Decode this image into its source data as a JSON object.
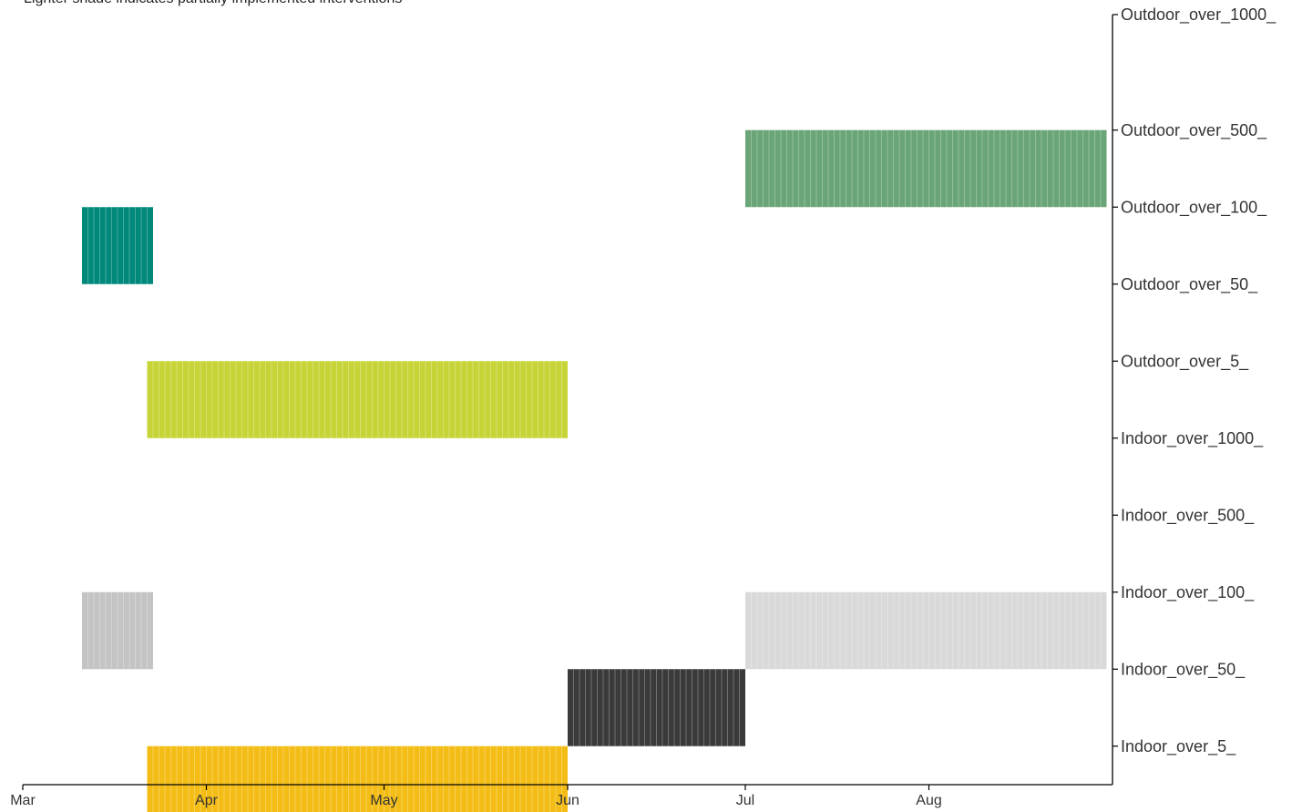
{
  "chart_data": {
    "type": "gantt",
    "subtitle": "Lighter shade indicates partially implemented interventions",
    "x_axis": {
      "range": [
        "2020-03-01",
        "2020-09-01"
      ],
      "ticks": [
        {
          "date": "2020-03-01",
          "label": "Mar"
        },
        {
          "date": "2020-04-01",
          "label": "Apr"
        },
        {
          "date": "2020-05-01",
          "label": "May"
        },
        {
          "date": "2020-06-01",
          "label": "Jun"
        },
        {
          "date": "2020-07-01",
          "label": "Jul"
        },
        {
          "date": "2020-08-01",
          "label": "Aug"
        }
      ]
    },
    "y_position": "right",
    "categories": [
      "Outdoor_over_1000_",
      "Outdoor_over_500_",
      "Outdoor_over_100_",
      "Outdoor_over_50_",
      "Outdoor_over_5_",
      "Indoor_over_1000_",
      "Indoor_over_500_",
      "Indoor_over_100_",
      "Indoor_over_50_",
      "Indoor_over_5_"
    ],
    "bars": [
      {
        "category": "Outdoor_over_500_",
        "start": "2020-07-01",
        "end": "2020-08-31",
        "color": "#6aa577",
        "partial": false
      },
      {
        "category": "Outdoor_over_100_",
        "start": "2020-03-11",
        "end": "2020-03-23",
        "color": "#00897b",
        "partial": false
      },
      {
        "category": "Outdoor_over_5_",
        "start": "2020-03-22",
        "end": "2020-06-01",
        "color": "#c6d437",
        "partial": false
      },
      {
        "category": "Indoor_over_100_",
        "start": "2020-03-11",
        "end": "2020-03-23",
        "color": "#c4c4c4",
        "partial": false
      },
      {
        "category": "Indoor_over_100_",
        "start": "2020-07-01",
        "end": "2020-08-31",
        "color": "#d9d9d9",
        "partial": true
      },
      {
        "category": "Indoor_over_50_",
        "start": "2020-06-01",
        "end": "2020-07-01",
        "color": "#3a3a3a",
        "partial": false
      },
      {
        "category": "Indoor_over_5_",
        "start": "2020-03-22",
        "end": "2020-06-01",
        "color": "#f4bd16",
        "partial": false
      }
    ]
  }
}
